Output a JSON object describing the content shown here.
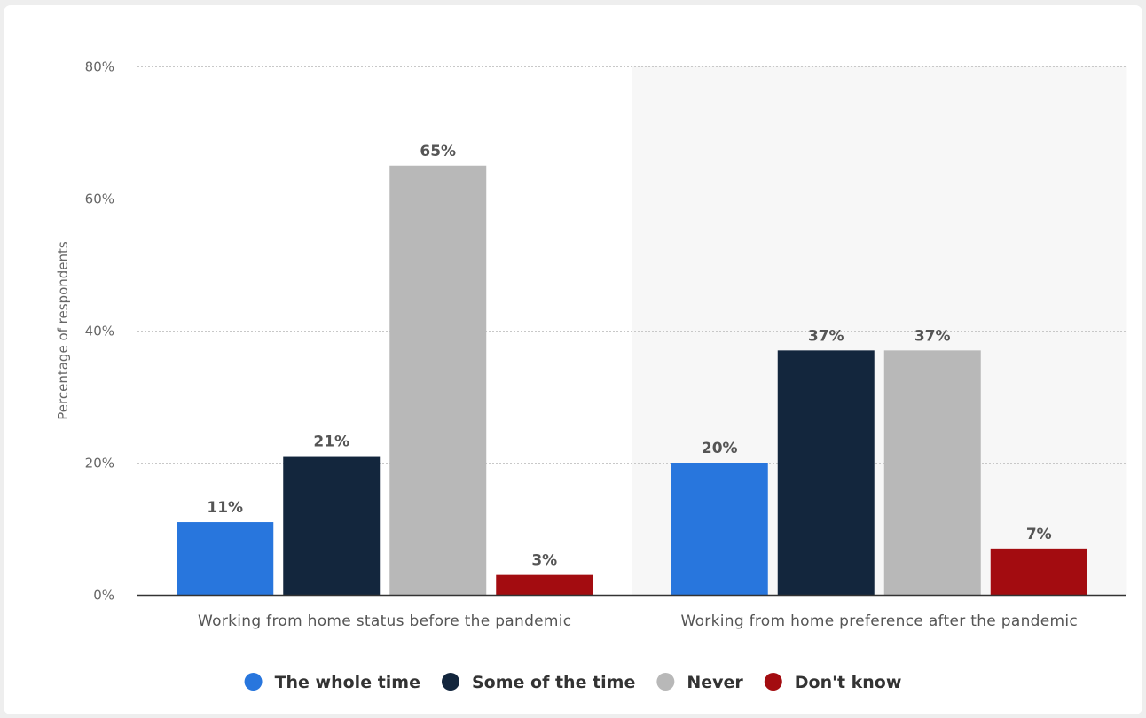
{
  "chart_data": {
    "type": "bar",
    "title": "",
    "xlabel": "",
    "ylabel": "Percentage of respondents",
    "ylim": [
      0,
      80
    ],
    "y_ticks": [
      0,
      20,
      40,
      60,
      80
    ],
    "y_tick_labels": [
      "0%",
      "20%",
      "40%",
      "60%",
      "80%"
    ],
    "value_suffix": "%",
    "grid": true,
    "legend_position": "bottom",
    "highlighted_category_index": 1,
    "categories": [
      "Working from home status before the pandemic",
      "Working from home preference after the pandemic"
    ],
    "series": [
      {
        "name": "The whole time",
        "color": "#2876dd",
        "values": [
          11,
          20
        ]
      },
      {
        "name": "Some of the time",
        "color": "#13263d",
        "values": [
          21,
          37
        ]
      },
      {
        "name": "Never",
        "color": "#b8b8b8",
        "values": [
          65,
          37
        ]
      },
      {
        "name": "Don't know",
        "color": "#a30c10",
        "values": [
          3,
          7
        ]
      }
    ]
  }
}
